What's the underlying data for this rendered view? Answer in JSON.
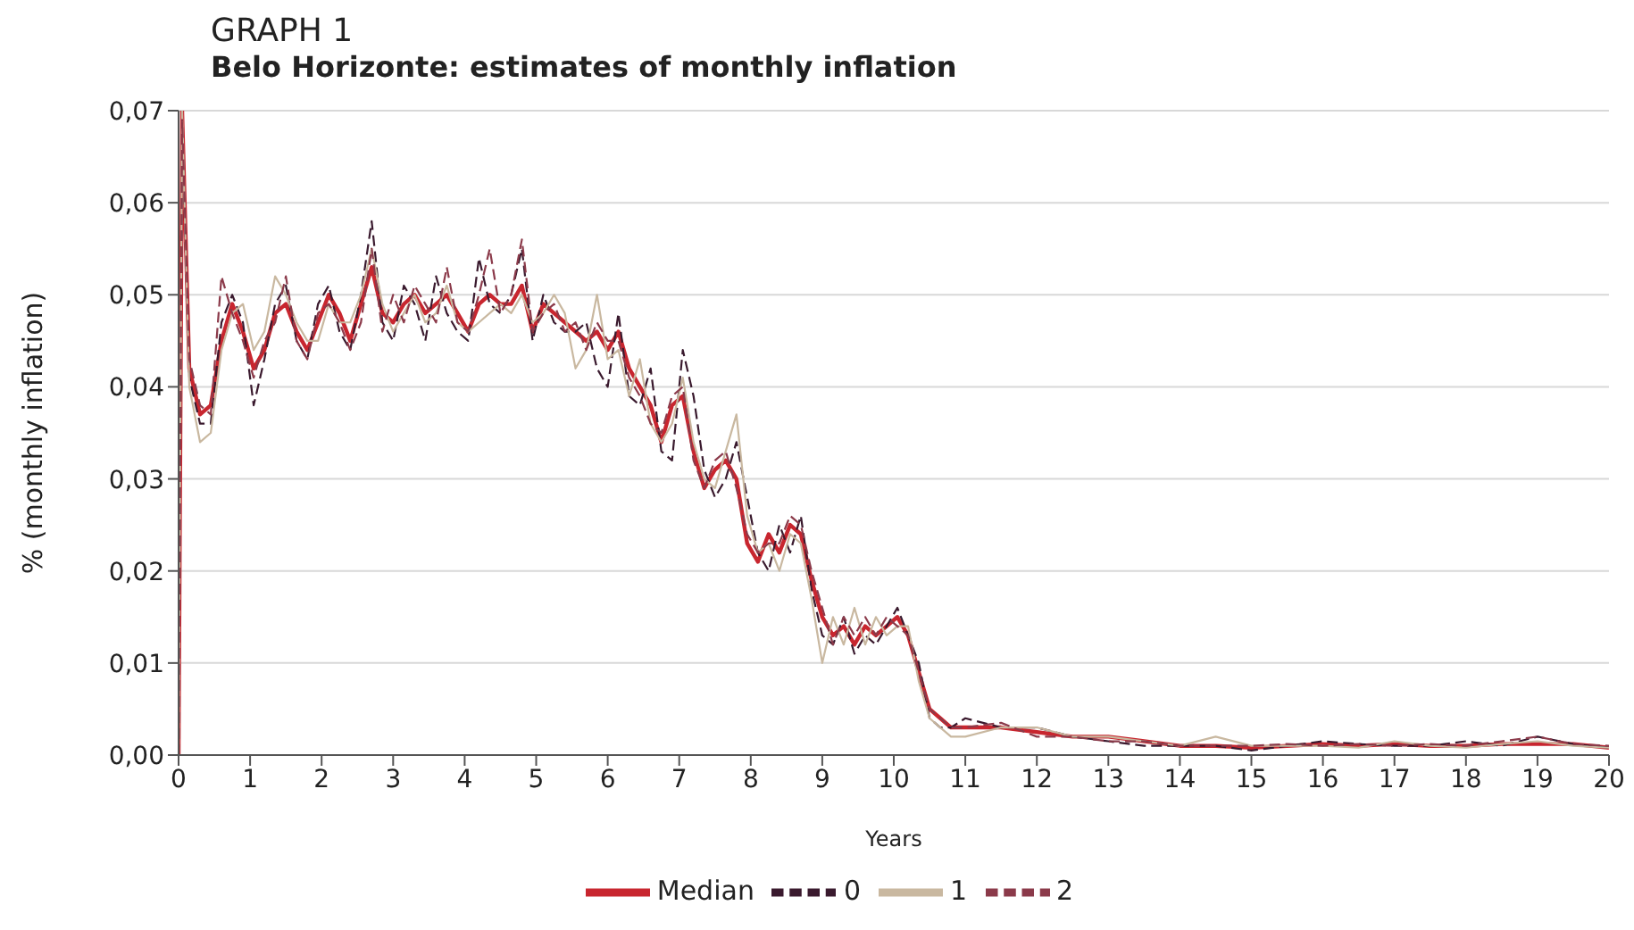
{
  "chart_data": {
    "type": "line",
    "title": "GRAPH 1",
    "subtitle": "Belo Horizonte: estimates of monthly inflation",
    "xlabel": "Years",
    "ylabel": "% (monthly inflation)",
    "x": [
      0,
      0.05,
      0.15,
      0.3,
      0.45,
      0.6,
      0.75,
      0.9,
      1.05,
      1.2,
      1.35,
      1.5,
      1.65,
      1.8,
      1.95,
      2.1,
      2.25,
      2.4,
      2.55,
      2.7,
      2.85,
      3,
      3.15,
      3.3,
      3.45,
      3.6,
      3.75,
      3.9,
      4.05,
      4.2,
      4.35,
      4.5,
      4.65,
      4.8,
      4.95,
      5.1,
      5.25,
      5.4,
      5.55,
      5.7,
      5.85,
      6,
      6.15,
      6.3,
      6.45,
      6.6,
      6.75,
      6.9,
      7.05,
      7.2,
      7.35,
      7.5,
      7.65,
      7.8,
      7.95,
      8.1,
      8.25,
      8.4,
      8.55,
      8.7,
      8.85,
      9,
      9.15,
      9.3,
      9.45,
      9.6,
      9.75,
      9.9,
      10.05,
      10.2,
      10.35,
      10.5,
      10.65,
      10.8,
      11,
      11.5,
      12,
      12.5,
      13,
      13.5,
      14,
      14.5,
      15,
      15.5,
      16,
      16.5,
      17,
      17.5,
      18,
      18.5,
      19,
      19.5,
      20
    ],
    "series": [
      {
        "name": "Median",
        "color": "#c8262f",
        "line_style": "solid",
        "values": [
          0,
          0.07,
          0.042,
          0.037,
          0.038,
          0.045,
          0.049,
          0.046,
          0.042,
          0.044,
          0.048,
          0.049,
          0.046,
          0.044,
          0.047,
          0.05,
          0.048,
          0.045,
          0.049,
          0.053,
          0.048,
          0.047,
          0.049,
          0.05,
          0.048,
          0.049,
          0.05,
          0.048,
          0.046,
          0.049,
          0.05,
          0.049,
          0.049,
          0.051,
          0.046,
          0.049,
          0.048,
          0.047,
          0.046,
          0.045,
          0.046,
          0.044,
          0.046,
          0.042,
          0.04,
          0.038,
          0.034,
          0.038,
          0.039,
          0.033,
          0.029,
          0.031,
          0.032,
          0.03,
          0.023,
          0.021,
          0.024,
          0.022,
          0.025,
          0.024,
          0.019,
          0.015,
          0.013,
          0.014,
          0.012,
          0.014,
          0.013,
          0.014,
          0.015,
          0.013,
          0.009,
          0.005,
          0.004,
          0.003,
          0.003,
          0.003,
          0.0025,
          0.002,
          0.002,
          0.0015,
          0.001,
          0.001,
          0.0008,
          0.001,
          0.0012,
          0.001,
          0.0012,
          0.001,
          0.001,
          0.0012,
          0.0012,
          0.0012,
          0.0008
        ]
      },
      {
        "name": "0",
        "color": "#3a1a2e",
        "line_style": "dashed",
        "values": [
          0,
          0.068,
          0.041,
          0.036,
          0.036,
          0.047,
          0.05,
          0.047,
          0.038,
          0.043,
          0.049,
          0.051,
          0.045,
          0.043,
          0.049,
          0.051,
          0.046,
          0.044,
          0.05,
          0.058,
          0.047,
          0.045,
          0.051,
          0.049,
          0.045,
          0.052,
          0.048,
          0.046,
          0.045,
          0.054,
          0.049,
          0.048,
          0.05,
          0.055,
          0.045,
          0.05,
          0.047,
          0.046,
          0.046,
          0.047,
          0.042,
          0.04,
          0.048,
          0.039,
          0.038,
          0.042,
          0.033,
          0.032,
          0.044,
          0.039,
          0.031,
          0.028,
          0.03,
          0.034,
          0.028,
          0.022,
          0.02,
          0.025,
          0.022,
          0.026,
          0.018,
          0.013,
          0.012,
          0.015,
          0.011,
          0.013,
          0.012,
          0.014,
          0.016,
          0.013,
          0.01,
          0.004,
          0.003,
          0.003,
          0.004,
          0.003,
          0.003,
          0.002,
          0.0015,
          0.001,
          0.001,
          0.001,
          0.0005,
          0.001,
          0.0015,
          0.0012,
          0.001,
          0.001,
          0.0015,
          0.001,
          0.002,
          0.0012,
          0.0008
        ]
      },
      {
        "name": "1",
        "color": "#c9b8a0",
        "line_style": "solid",
        "values": [
          0,
          0.07,
          0.04,
          0.034,
          0.035,
          0.044,
          0.048,
          0.049,
          0.044,
          0.046,
          0.052,
          0.05,
          0.047,
          0.045,
          0.045,
          0.049,
          0.047,
          0.047,
          0.05,
          0.055,
          0.049,
          0.046,
          0.048,
          0.05,
          0.047,
          0.048,
          0.051,
          0.047,
          0.046,
          0.047,
          0.048,
          0.049,
          0.048,
          0.05,
          0.047,
          0.048,
          0.05,
          0.048,
          0.042,
          0.044,
          0.05,
          0.043,
          0.044,
          0.039,
          0.043,
          0.036,
          0.034,
          0.036,
          0.041,
          0.034,
          0.03,
          0.029,
          0.033,
          0.037,
          0.026,
          0.022,
          0.023,
          0.02,
          0.024,
          0.023,
          0.017,
          0.01,
          0.015,
          0.012,
          0.016,
          0.012,
          0.015,
          0.013,
          0.014,
          0.014,
          0.008,
          0.004,
          0.003,
          0.002,
          0.002,
          0.003,
          0.003,
          0.002,
          0.002,
          0.0015,
          0.001,
          0.002,
          0.001,
          0.001,
          0.001,
          0.0008,
          0.0015,
          0.001,
          0.0008,
          0.0012,
          0.0015,
          0.001,
          0.0008
        ]
      },
      {
        "name": "2",
        "color": "#8b3a4a",
        "line_style": "dashed",
        "values": [
          0,
          0.069,
          0.043,
          0.038,
          0.037,
          0.052,
          0.048,
          0.045,
          0.041,
          0.045,
          0.047,
          0.052,
          0.045,
          0.043,
          0.048,
          0.049,
          0.047,
          0.044,
          0.047,
          0.055,
          0.046,
          0.05,
          0.047,
          0.051,
          0.049,
          0.047,
          0.053,
          0.047,
          0.046,
          0.05,
          0.055,
          0.048,
          0.05,
          0.056,
          0.046,
          0.048,
          0.049,
          0.046,
          0.047,
          0.044,
          0.047,
          0.045,
          0.045,
          0.041,
          0.039,
          0.036,
          0.035,
          0.039,
          0.04,
          0.032,
          0.029,
          0.032,
          0.033,
          0.029,
          0.024,
          0.022,
          0.023,
          0.023,
          0.026,
          0.025,
          0.02,
          0.016,
          0.012,
          0.015,
          0.013,
          0.015,
          0.013,
          0.015,
          0.014,
          0.013,
          0.009,
          0.005,
          0.004,
          0.003,
          0.003,
          0.0035,
          0.002,
          0.002,
          0.0015,
          0.0015,
          0.001,
          0.001,
          0.001,
          0.0012,
          0.001,
          0.0012,
          0.001,
          0.0012,
          0.001,
          0.0015,
          0.002,
          0.0012,
          0.001
        ]
      }
    ],
    "xlim": [
      0,
      20
    ],
    "xticks": [
      0,
      1,
      2,
      3,
      4,
      5,
      6,
      7,
      8,
      9,
      10,
      11,
      12,
      13,
      14,
      15,
      16,
      17,
      18,
      19,
      20
    ],
    "ylim": [
      0,
      0.07
    ],
    "yticks": [
      {
        "value": 0,
        "label": "0,00"
      },
      {
        "value": 0.01,
        "label": "0,01"
      },
      {
        "value": 0.02,
        "label": "0,02"
      },
      {
        "value": 0.03,
        "label": "0,03"
      },
      {
        "value": 0.04,
        "label": "0,04"
      },
      {
        "value": 0.05,
        "label": "0,05"
      },
      {
        "value": 0.06,
        "label": "0,06"
      },
      {
        "value": 0.07,
        "label": "0,07"
      }
    ],
    "grid": "y",
    "legend": "bottom",
    "marker": "none"
  }
}
